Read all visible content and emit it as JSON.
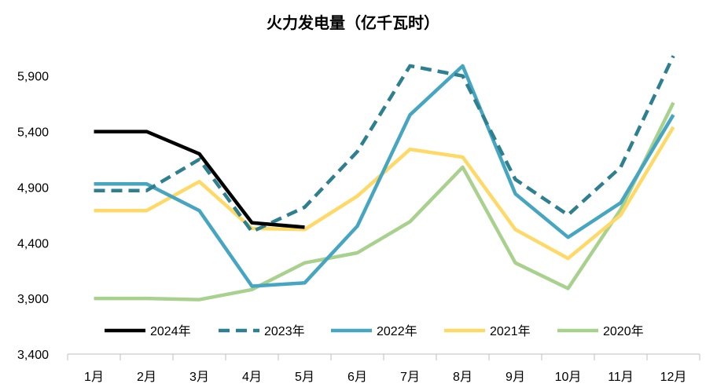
{
  "chart_data": {
    "type": "line",
    "title": "火力发电量（亿千瓦时）",
    "categories": [
      "1月",
      "2月",
      "3月",
      "4月",
      "5月",
      "6月",
      "7月",
      "8月",
      "9月",
      "10月",
      "11月",
      "12月"
    ],
    "y_ticks": [
      "3,400",
      "3,900",
      "4,400",
      "4,900",
      "5,400",
      "5,900"
    ],
    "ylim": [
      3400,
      6300
    ],
    "grid": false,
    "legend_position": "bottom-inside",
    "series": [
      {
        "name": "2024年",
        "color": "#000000",
        "dash": "solid",
        "values": [
          5400,
          5400,
          5200,
          4580,
          4540,
          null,
          null,
          null,
          null,
          null,
          null,
          null
        ]
      },
      {
        "name": "2023年",
        "color": "#2E7F8F",
        "dash": "dashed",
        "values": [
          4870,
          4870,
          5150,
          4500,
          4720,
          5220,
          5990,
          5900,
          4970,
          4650,
          5080,
          6080
        ]
      },
      {
        "name": "2022年",
        "color": "#46A6C1",
        "dash": "solid",
        "values": [
          4930,
          4930,
          4690,
          4010,
          4040,
          4550,
          5550,
          5990,
          4840,
          4450,
          4760,
          5550
        ]
      },
      {
        "name": "2021年",
        "color": "#FFD966",
        "dash": "solid",
        "values": [
          4690,
          4690,
          4950,
          4530,
          4520,
          4820,
          5240,
          5170,
          4520,
          4260,
          4650,
          5440
        ]
      },
      {
        "name": "2020年",
        "color": "#A9D18E",
        "dash": "solid",
        "values": [
          3900,
          3900,
          3890,
          3980,
          4220,
          4310,
          4590,
          5080,
          4220,
          3990,
          4700,
          5660
        ]
      }
    ]
  }
}
